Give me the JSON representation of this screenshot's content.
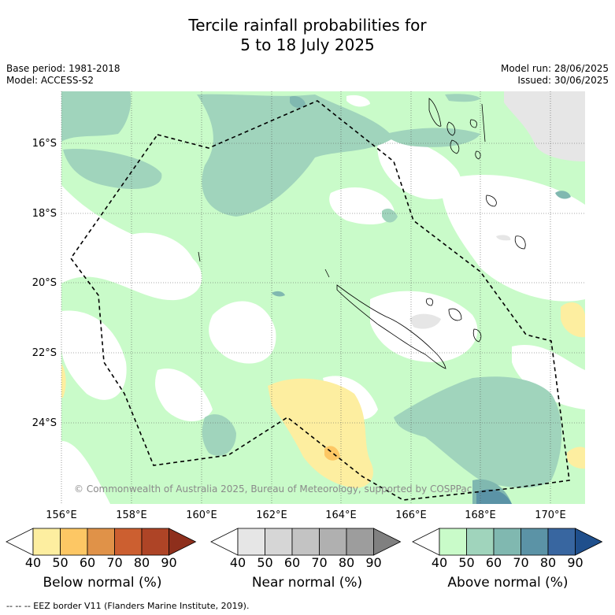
{
  "title_line1": "Tercile rainfall probabilities for",
  "title_line2": "5 to 18 July 2025",
  "base_period": "Base period: 1981-2018",
  "model": "Model: ACCESS-S2",
  "model_run": "Model run: 28/06/2025",
  "issued": "Issued: 30/06/2025",
  "copyright": "© Commonwealth of Australia 2025, Bureau of Meteorology, supported by COSPPac",
  "footer": "--  --  -- EEZ border V11 (Flanders Marine Institute, 2019).",
  "lat_labels": [
    "16°S",
    "18°S",
    "20°S",
    "22°S",
    "24°S"
  ],
  "lon_labels": [
    "156°E",
    "158°E",
    "160°E",
    "162°E",
    "164°E",
    "166°E",
    "168°E",
    "170°E"
  ],
  "colorbars": [
    {
      "label": "Below normal (%)",
      "ticks": [
        "40",
        "50",
        "60",
        "70",
        "80",
        "90"
      ],
      "colors": [
        "#ffffff",
        "#fdeea0",
        "#fdc764",
        "#e09248",
        "#cc5f30",
        "#ae4426",
        "#8e2f1c"
      ]
    },
    {
      "label": "Near normal (%)",
      "ticks": [
        "40",
        "50",
        "60",
        "70",
        "80",
        "90"
      ],
      "colors": [
        "#ffffff",
        "#e6e6e6",
        "#d6d6d6",
        "#c3c3c3",
        "#b0b0b0",
        "#9d9d9d",
        "#808080"
      ]
    },
    {
      "label": "Above normal (%)",
      "ticks": [
        "40",
        "50",
        "60",
        "70",
        "80",
        "90"
      ],
      "colors": [
        "#ffffff",
        "#c9fbc9",
        "#a0d4bc",
        "#80b8b0",
        "#5b93a6",
        "#3866a0",
        "#1f4f8c"
      ]
    }
  ]
}
